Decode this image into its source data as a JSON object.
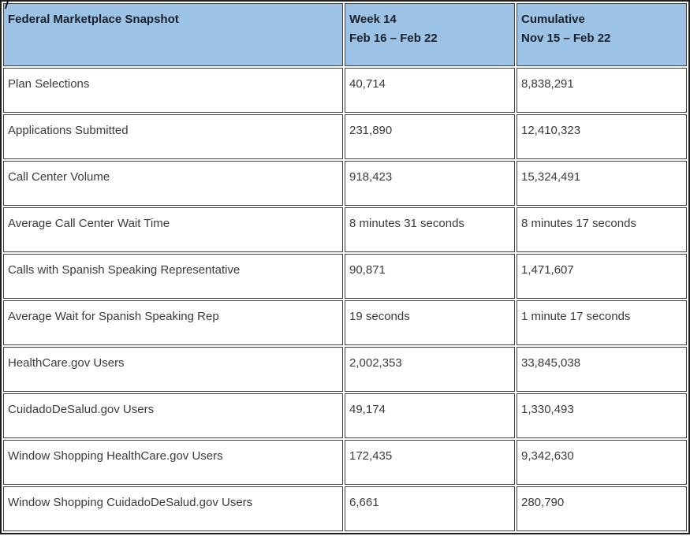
{
  "table": {
    "header": {
      "metric_label": "Federal Marketplace Snapshot",
      "week_col": {
        "line1": "Week 14",
        "line2": "Feb 16 – Feb 22"
      },
      "cumulative_col": {
        "line1": "Cumulative",
        "line2": "Nov 15 – Feb 22"
      }
    },
    "rows": [
      {
        "label": "Plan Selections",
        "week": "40,714",
        "cumulative": "8,838,291"
      },
      {
        "label": "Applications Submitted",
        "week": "231,890",
        "cumulative": "12,410,323"
      },
      {
        "label": "Call Center Volume",
        "week": "918,423",
        "cumulative": "15,324,491"
      },
      {
        "label": "Average Call Center Wait Time",
        "week": "8 minutes 31 seconds",
        "cumulative": "8 minutes 17 seconds"
      },
      {
        "label": "Calls with Spanish Speaking Representative",
        "week": "90,871",
        "cumulative": "1,471,607"
      },
      {
        "label": "Average Wait for Spanish Speaking Rep",
        "week": "19 seconds",
        "cumulative": "1 minute 17 seconds"
      },
      {
        "label": "HealthCare.gov Users",
        "week": "2,002,353",
        "cumulative": "33,845,038"
      },
      {
        "label": "CuidadoDeSalud.gov Users",
        "week": "49,174",
        "cumulative": "1,330,493"
      },
      {
        "label": "Window Shopping HealthCare.gov Users",
        "week": "172,435",
        "cumulative": "9,342,630"
      },
      {
        "label": "Window Shopping CuidadoDeSalud.gov Users",
        "week": "6,661",
        "cumulative": "280,790"
      }
    ]
  },
  "colors": {
    "header_background": "#9CC2E5",
    "header_text": "#17202A",
    "body_text": "#3B3B3B",
    "cell_border": "#404040",
    "outer_border": "#1F1F1F"
  }
}
